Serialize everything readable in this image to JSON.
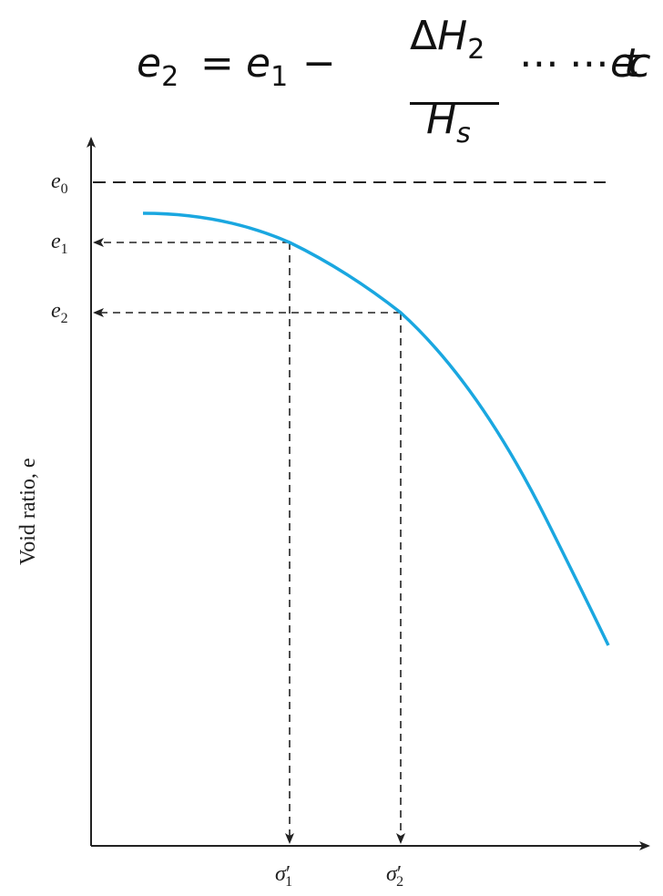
{
  "equation": {
    "lhs_var": "e",
    "lhs_sub": "2",
    "equals": "=",
    "rhs_var": "e",
    "rhs_sub": "1",
    "minus": "−",
    "numerator_delta": "Δ",
    "numerator_var": "H",
    "numerator_sub": "2",
    "denominator_var": "H",
    "denominator_sub": "s",
    "dots_a": "⋯",
    "dots_b": "⋯",
    "etc": "etc",
    "period": "."
  },
  "diagram": {
    "y_axis_title": "Void ratio, e",
    "levels": [
      {
        "label": "e",
        "sub": "0"
      },
      {
        "label": "e",
        "sub": "1"
      },
      {
        "label": "e",
        "sub": "2"
      }
    ],
    "stresses": [
      {
        "label": "σ",
        "prime": "′",
        "sub": "1"
      },
      {
        "label": "σ",
        "prime": "′",
        "sub": "2"
      }
    ],
    "colors": {
      "curve": "#1aa7e0",
      "lines": "#222222"
    }
  }
}
